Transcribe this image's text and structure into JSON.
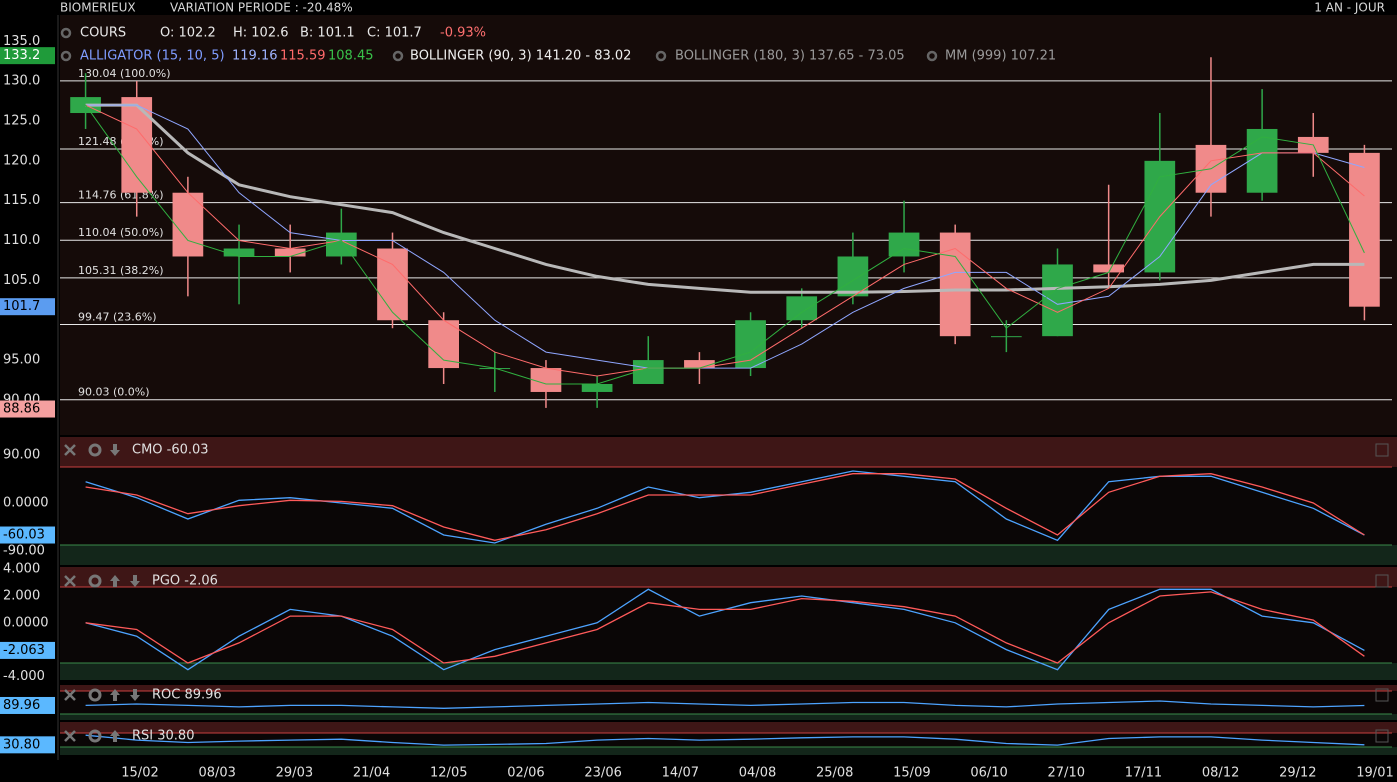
{
  "chart_data": [
    {
      "type": "candlestick",
      "title": "BIOMERIEUX",
      "subtitle": "VARIATION PERIODE : -20.48%",
      "period": "1 AN - JOUR",
      "legend_rows": [
        [
          {
            "text": "COURS",
            "color": "#e8e8e8"
          },
          {
            "text": "O: 102.2",
            "color": "#e8e8e8"
          },
          {
            "text": "H: 102.6",
            "color": "#e8e8e8"
          },
          {
            "text": "B: 101.1",
            "color": "#e8e8e8"
          },
          {
            "text": "C: 101.7",
            "color": "#e8e8e8"
          },
          {
            "text": "-0.93%",
            "color": "#ff7070"
          }
        ],
        [
          {
            "text": "ALLIGATOR (15, 10, 5)",
            "color": "#7f9cff"
          },
          {
            "text": "119.16",
            "color": "#9fb4ff"
          },
          {
            "text": "115.59",
            "color": "#ff6b6b"
          },
          {
            "text": "108.45",
            "color": "#39c24a"
          },
          {
            "text": "BOLLINGER (90, 3) 141.20 - 83.02",
            "color": "#f0f0f0"
          },
          {
            "text": "BOLLINGER (180, 3) 137.65 - 73.05",
            "color": "#9a9a9a"
          },
          {
            "text": "MM (999) 107.21",
            "color": "#9a9a9a"
          }
        ]
      ],
      "x_labels": [
        "15/02",
        "08/03",
        "29/03",
        "21/04",
        "12/05",
        "02/06",
        "23/06",
        "14/07",
        "04/08",
        "25/08",
        "15/09",
        "06/10",
        "27/10",
        "17/11",
        "08/12",
        "29/12",
        "19/01"
      ],
      "open": [
        126,
        128,
        116,
        108,
        109,
        108,
        109,
        100,
        94,
        94,
        91,
        92,
        95,
        94,
        100,
        103,
        108,
        111,
        98,
        98,
        107,
        106,
        122,
        116,
        123,
        121
      ],
      "high": [
        131,
        130,
        118,
        112,
        112,
        114,
        111,
        101,
        96,
        95,
        93,
        98,
        96,
        101,
        104,
        111,
        115,
        112,
        100,
        109,
        117,
        126,
        133,
        129,
        126,
        122
      ],
      "low": [
        124,
        113,
        103,
        102,
        106,
        107,
        99,
        92,
        91,
        89,
        89,
        92,
        92,
        93,
        99,
        102,
        106,
        97,
        96,
        98,
        104,
        105,
        113,
        115,
        118,
        100
      ],
      "close": [
        128,
        116,
        108,
        109,
        108,
        111,
        100,
        94,
        94,
        91,
        92,
        95,
        94,
        100,
        103,
        108,
        111,
        98,
        98,
        107,
        106,
        120,
        116,
        124,
        121,
        101.7
      ],
      "up_color": "#2fa84a",
      "down_color": "#f08a8a",
      "series": [
        {
          "color": "#b8b8b8",
          "width": 3,
          "values": [
            127,
            127,
            121,
            117,
            115.5,
            114.5,
            113.5,
            111,
            109,
            107,
            105.5,
            104.5,
            104,
            103.5,
            103.5,
            103.5,
            103.6,
            103.8,
            103.8,
            104,
            104.2,
            104.5,
            105,
            106,
            107,
            107
          ]
        },
        {
          "color": "#8fa6ff",
          "width": 1,
          "values": [
            127,
            127,
            124,
            116,
            111,
            110,
            110,
            106,
            100,
            96,
            95,
            94,
            94,
            94,
            97,
            101,
            104,
            106,
            106,
            102,
            103,
            108,
            117,
            121,
            121,
            119.16
          ]
        },
        {
          "color": "#ff6b6b",
          "width": 1,
          "values": [
            127,
            124,
            116,
            110,
            109,
            110,
            107,
            100,
            96,
            94,
            93,
            94,
            94,
            95,
            99,
            103,
            107,
            109,
            104,
            101,
            104,
            113,
            120,
            121,
            121,
            115.59
          ]
        },
        {
          "color": "#30b040",
          "width": 1,
          "values": [
            127,
            118,
            110,
            108,
            108,
            110,
            101,
            95,
            94,
            92,
            92,
            94,
            94,
            96,
            101,
            105,
            109,
            108,
            99,
            104,
            106,
            118,
            119,
            123,
            122,
            108.45
          ]
        }
      ],
      "fib_levels": [
        {
          "value": 130.04,
          "label": "130.04  (100.0%)"
        },
        {
          "value": 121.48,
          "label": "121.48  (78.6%)"
        },
        {
          "value": 114.76,
          "label": "114.76  (61.8%)"
        },
        {
          "value": 110.04,
          "label": "110.04  (50.0%)"
        },
        {
          "value": 105.31,
          "label": "105.31  (38.2%)"
        },
        {
          "value": 99.47,
          "label": "99.47  (23.6%)"
        },
        {
          "value": 90.03,
          "label": "90.03  (0.0%)"
        }
      ],
      "ylim": [
        85.6,
        138.3
      ],
      "yticks": [
        {
          "value": 135,
          "label": "135.0"
        },
        {
          "value": 130,
          "label": "130.0"
        },
        {
          "value": 125,
          "label": "125.0"
        },
        {
          "value": 120,
          "label": "120.0"
        },
        {
          "value": 115,
          "label": "115.0"
        },
        {
          "value": 110,
          "label": "110.0"
        },
        {
          "value": 105,
          "label": "105.0"
        },
        {
          "value": 95,
          "label": "95.00"
        },
        {
          "value": 90,
          "label": "90.00"
        }
      ],
      "badges": [
        {
          "value": 133.2,
          "color": "#1f9b3a",
          "text_color": "#ffffff"
        },
        {
          "value": 101.7,
          "color": "#5b9cf0",
          "text_color": "#000000"
        },
        {
          "value": 88.86,
          "color": "#f4a0a0",
          "text_color": "#000000"
        }
      ]
    },
    {
      "type": "line",
      "title": "CMO -60.03",
      "ylim": [
        -116.25,
        123.75
      ],
      "yticks": [
        {
          "value": 90,
          "label": "90.00"
        },
        {
          "value": 0,
          "label": "0.0000"
        },
        {
          "value": -90,
          "label": "-90.00"
        }
      ],
      "series": [
        {
          "color": "#4da3ff",
          "values": [
            40,
            10,
            -30,
            5,
            10,
            0,
            -10,
            -60,
            -75,
            -40,
            -10,
            30,
            10,
            20,
            40,
            60,
            50,
            40,
            -30,
            -70,
            40,
            50,
            50,
            20,
            -10,
            -60.03
          ]
        },
        {
          "color": "#ff5a5a",
          "values": [
            30,
            15,
            -20,
            -5,
            5,
            3,
            -5,
            -45,
            -70,
            -50,
            -20,
            15,
            15,
            15,
            35,
            55,
            55,
            45,
            -10,
            -60,
            20,
            50,
            55,
            30,
            0,
            -60
          ]
        }
      ],
      "badge": {
        "value": -60.03,
        "color": "#5bb8ff",
        "text_color": "#000000"
      }
    },
    {
      "type": "line",
      "title": "PGO -2.06",
      "ylim": [
        -4.27,
        4.16
      ],
      "yticks": [
        {
          "value": 4,
          "label": "4.000"
        },
        {
          "value": 2,
          "label": "2.000"
        },
        {
          "value": 0,
          "label": "0.0000"
        },
        {
          "value": -2,
          "label": "-2.000"
        },
        {
          "value": -4,
          "label": "-4.000"
        }
      ],
      "series": [
        {
          "color": "#4da3ff",
          "values": [
            0,
            -1,
            -3.5,
            -1,
            1,
            0.5,
            -1,
            -3.5,
            -2,
            -1,
            0,
            2.5,
            0.5,
            1.5,
            2,
            1.5,
            1,
            0,
            -2,
            -3.5,
            1,
            2.5,
            2.5,
            0.5,
            0,
            -2.063
          ]
        },
        {
          "color": "#ff5a5a",
          "values": [
            0,
            -0.5,
            -3,
            -1.5,
            0.5,
            0.5,
            -0.5,
            -3,
            -2.5,
            -1.5,
            -0.5,
            1.5,
            1,
            1,
            1.8,
            1.6,
            1.2,
            0.5,
            -1.5,
            -3,
            0,
            2,
            2.3,
            1,
            0.2,
            -2.5
          ]
        }
      ],
      "badge": {
        "value": -2.063,
        "color": "#5bb8ff",
        "text_color": "#000000"
      }
    },
    {
      "type": "line",
      "title": "ROC 89.96",
      "ylim": [
        80,
        104
      ],
      "series": [
        {
          "color": "#4da3ff",
          "values": [
            90,
            91,
            90,
            89,
            90,
            90,
            89,
            88,
            89,
            90,
            91,
            92,
            91,
            90,
            91,
            92,
            92,
            90,
            89,
            91,
            92,
            93,
            91,
            90,
            89,
            89.96
          ]
        }
      ],
      "badge": {
        "value": 89.96,
        "color": "#5bb8ff",
        "text_color": "#000000"
      }
    },
    {
      "type": "line",
      "title": "RSI 30.80",
      "ylim": [
        0,
        100
      ],
      "series": [
        {
          "color": "#4da3ff",
          "values": [
            60,
            45,
            38,
            42,
            45,
            48,
            38,
            30,
            32,
            35,
            45,
            50,
            45,
            48,
            52,
            55,
            55,
            48,
            35,
            30,
            50,
            55,
            55,
            45,
            38,
            30.8
          ]
        }
      ],
      "badge": {
        "value": 30.8,
        "label": "30.80",
        "color": "#5bb8ff",
        "text_color": "#000000"
      }
    }
  ]
}
